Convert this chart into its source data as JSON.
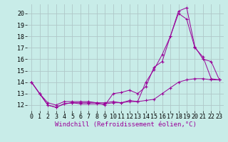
{
  "background_color": "#c8ece8",
  "grid_color": "#b0c8c8",
  "line_color": "#990099",
  "xlabel": "Windchill (Refroidissement éolien,°C)",
  "xlabel_fontsize": 6.5,
  "tick_fontsize": 6.0,
  "xlim": [
    -0.5,
    23.5
  ],
  "ylim": [
    11.5,
    20.8
  ],
  "yticks": [
    12,
    13,
    14,
    15,
    16,
    17,
    18,
    19,
    20
  ],
  "xticks": [
    0,
    1,
    2,
    3,
    4,
    5,
    6,
    7,
    8,
    9,
    10,
    11,
    12,
    13,
    14,
    15,
    16,
    17,
    18,
    19,
    20,
    21,
    22,
    23
  ],
  "series": [
    {
      "x": [
        0,
        1,
        2,
        3,
        4,
        5,
        6,
        7,
        8,
        9,
        10,
        11,
        12,
        13,
        14,
        15,
        16,
        17,
        18,
        19,
        20,
        21,
        22,
        23
      ],
      "y": [
        14.0,
        13.0,
        12.0,
        11.8,
        12.1,
        12.2,
        12.2,
        12.2,
        12.2,
        12.0,
        13.0,
        13.1,
        13.3,
        13.0,
        13.6,
        15.3,
        15.8,
        18.0,
        20.0,
        19.5,
        17.0,
        16.2,
        14.3,
        14.2
      ]
    },
    {
      "x": [
        0,
        1,
        2,
        3,
        4,
        5,
        6,
        7,
        8,
        9,
        10,
        11,
        12,
        13,
        14,
        15,
        16,
        17,
        18,
        19,
        20,
        21,
        22,
        23
      ],
      "y": [
        14.0,
        13.0,
        12.0,
        11.8,
        12.1,
        12.2,
        12.1,
        12.1,
        12.1,
        12.1,
        12.2,
        12.2,
        12.3,
        12.3,
        14.0,
        15.1,
        16.4,
        18.0,
        20.2,
        20.5,
        17.1,
        16.0,
        15.8,
        14.2
      ]
    },
    {
      "x": [
        0,
        1,
        2,
        3,
        4,
        5,
        6,
        7,
        8,
        9,
        10,
        11,
        12,
        13,
        14,
        15,
        16,
        17,
        18,
        19,
        20,
        21,
        22,
        23
      ],
      "y": [
        14.0,
        13.0,
        12.2,
        12.0,
        12.3,
        12.3,
        12.3,
        12.3,
        12.2,
        12.2,
        12.3,
        12.2,
        12.4,
        12.3,
        12.4,
        12.5,
        13.0,
        13.5,
        14.0,
        14.2,
        14.3,
        14.3,
        14.2,
        14.2
      ]
    }
  ]
}
